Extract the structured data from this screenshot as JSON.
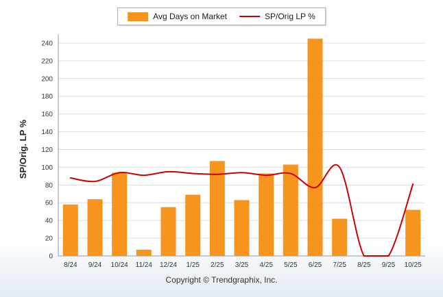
{
  "legend": {
    "bar_label": "Avg Days on Market",
    "line_label": "SP/Orig LP %"
  },
  "footer": "Copyright © Trendgraphix, Inc.",
  "chart_data": {
    "type": "bar+line",
    "categories": [
      "8/24",
      "9/24",
      "10/24",
      "11/24",
      "12/24",
      "1/25",
      "2/25",
      "3/25",
      "4/25",
      "5/25",
      "6/25",
      "7/25",
      "8/25",
      "9/25",
      "10/25"
    ],
    "series": [
      {
        "name": "Avg Days on Market",
        "type": "bar",
        "color": "#F7941D",
        "values": [
          58,
          64,
          94,
          7,
          55,
          69,
          107,
          63,
          93,
          103,
          245,
          42,
          0,
          0,
          52
        ]
      },
      {
        "name": "SP/Orig LP %",
        "type": "line",
        "color": "#CC0000",
        "values": [
          88,
          84,
          94,
          91,
          95,
          93,
          92,
          94,
          91,
          93,
          77,
          100,
          0,
          0,
          81
        ]
      }
    ],
    "ylabel": "SP/Orig. LP %",
    "xlabel": "",
    "title": "",
    "ylim": [
      0,
      250
    ],
    "yticks": [
      0,
      20,
      40,
      60,
      80,
      100,
      120,
      140,
      160,
      180,
      200,
      220,
      240
    ],
    "grid": true,
    "legend_position": "top-center"
  },
  "colors": {
    "bar": "#F7941D",
    "line": "#CC0000",
    "gridline": "#dcdcdc",
    "axis": "#9a9a9a",
    "text": "#333333"
  }
}
